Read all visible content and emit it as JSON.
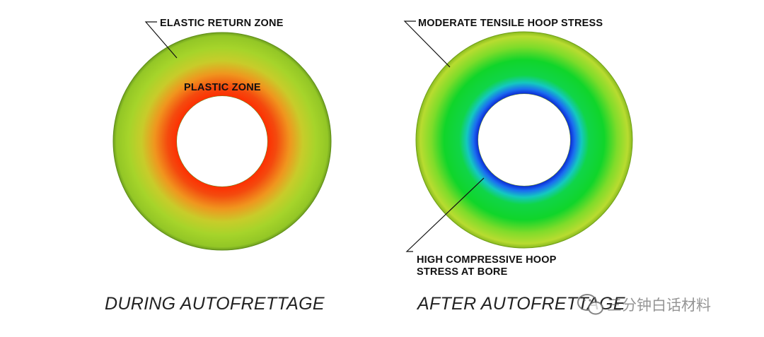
{
  "left_panel": {
    "outer_label": "ELASTIC RETURN ZONE",
    "inner_label": "PLASTIC ZONE",
    "caption": "DURING AUTOFRETTAGE",
    "colors": {
      "bore_edge": "#ff2a00",
      "mid": "#f09a1e",
      "outer": "#9fd42a",
      "rim": "#7fb522"
    }
  },
  "right_panel": {
    "outer_label": "MODERATE TENSILE HOOP STRESS",
    "bore_label_line1": "HIGH COMPRESSIVE HOOP",
    "bore_label_line2": "STRESS AT BORE",
    "caption": "AFTER AUTOFRETTAGE",
    "colors": {
      "bore_edge": "#0a1fd0",
      "inner_blue": "#1a6df0",
      "cyan": "#14d0b0",
      "green": "#10d52a",
      "yellow_green": "#b8e02c",
      "rim": "#9cc91e"
    }
  },
  "watermark": {
    "text": "三分钟白话材料",
    "icon": "wechat-icon"
  }
}
